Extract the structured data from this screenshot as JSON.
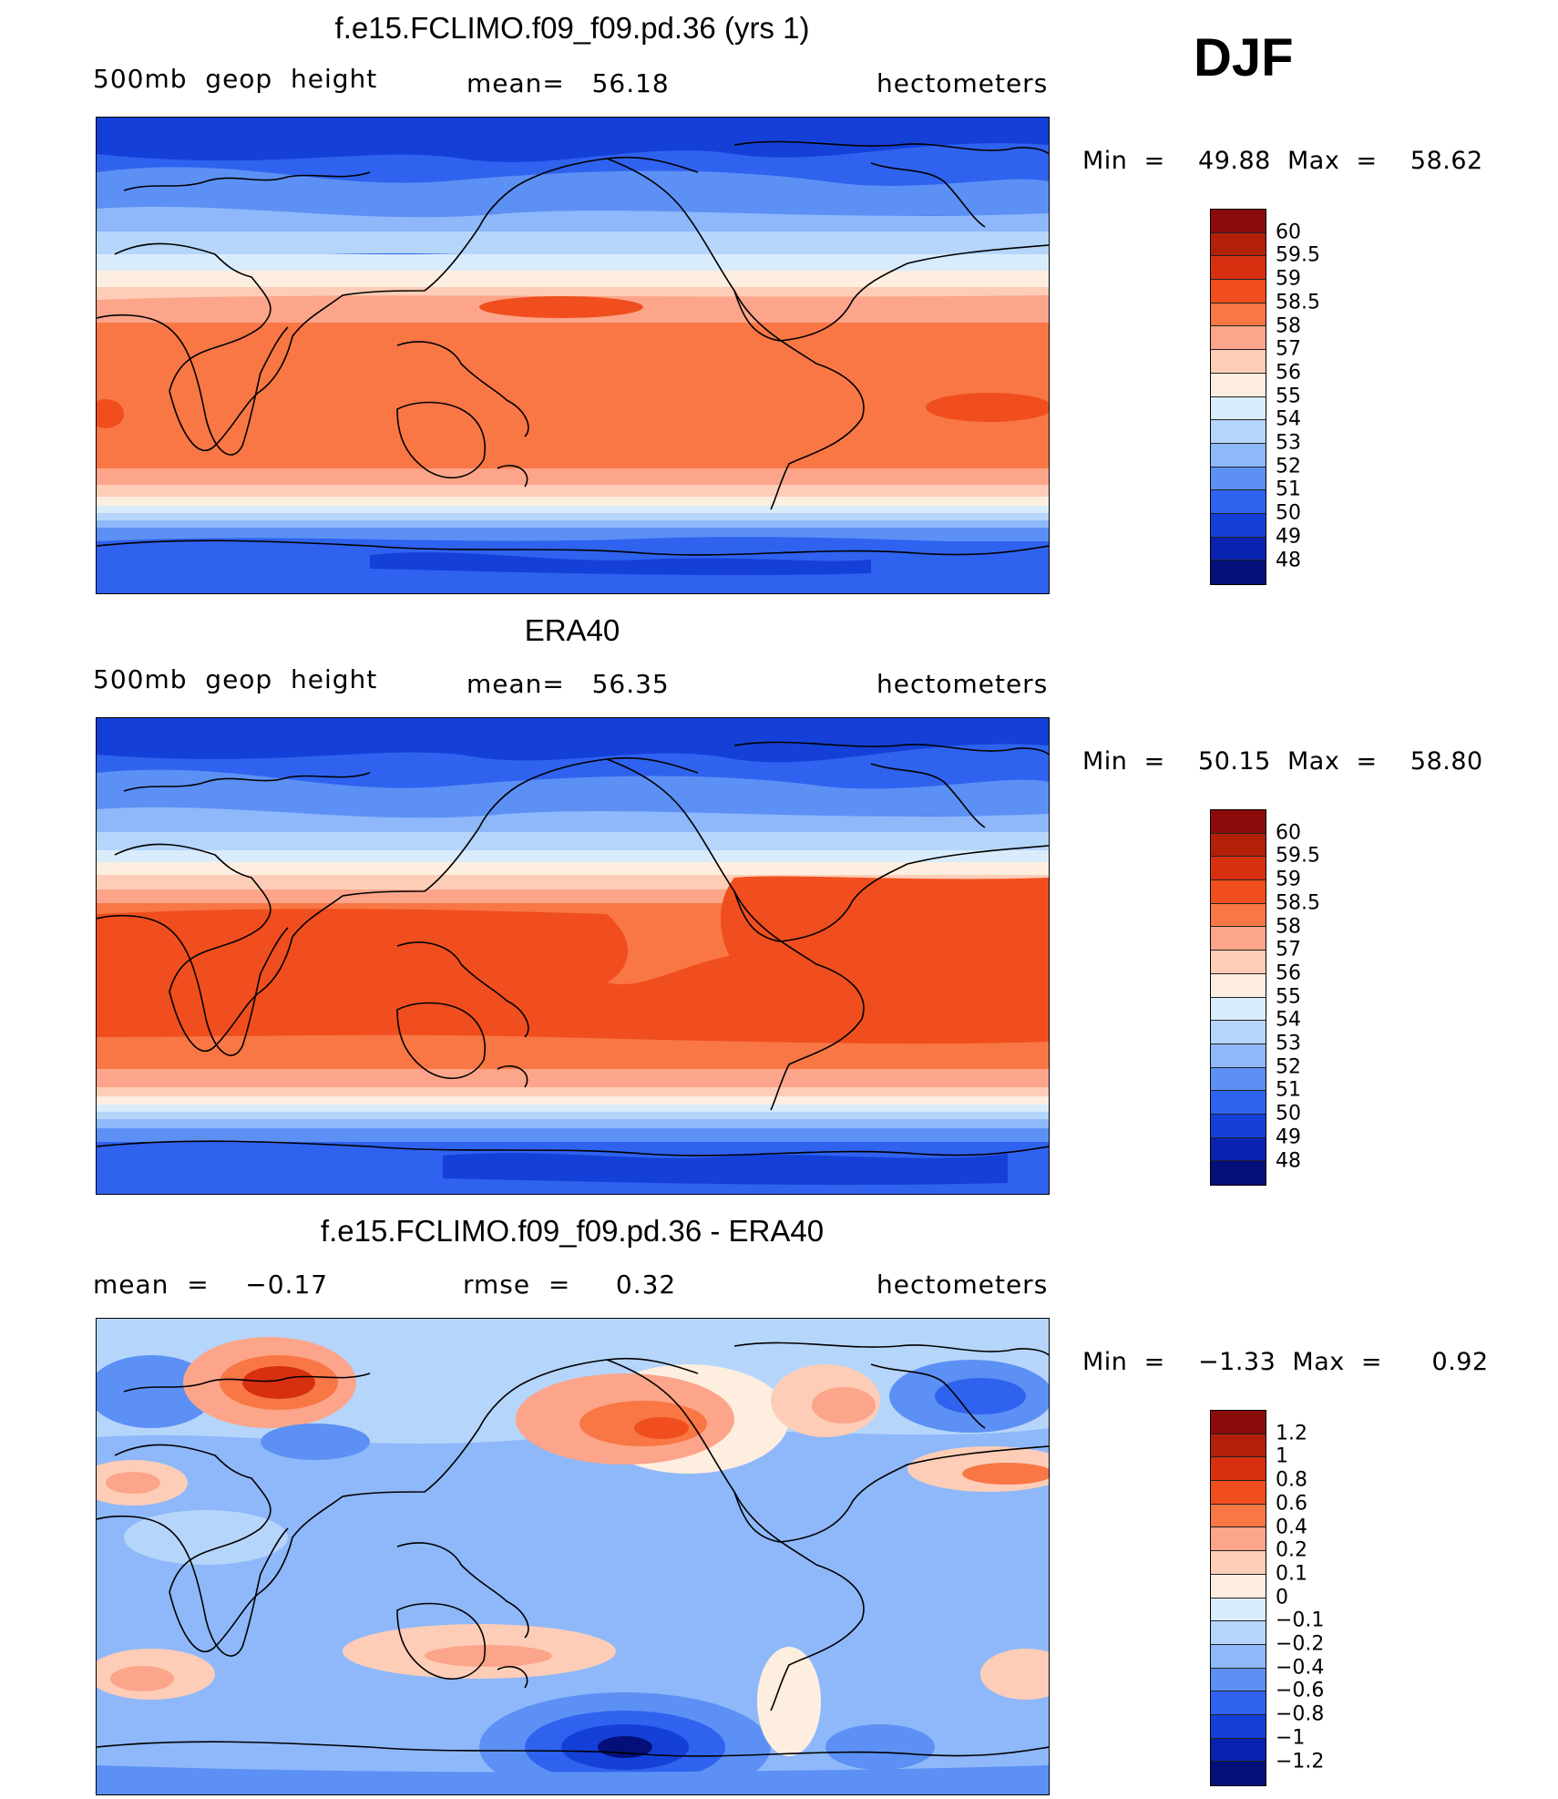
{
  "season": "DJF",
  "scale": {
    "levels": [
      "60",
      "59.5",
      "59",
      "58.5",
      "58",
      "57",
      "56",
      "55",
      "54",
      "53",
      "52",
      "51",
      "50",
      "49",
      "48"
    ],
    "colors": [
      "#8b0a0a",
      "#b3200a",
      "#d63010",
      "#f04e1e",
      "#f87745",
      "#fca58a",
      "#fdcdb7",
      "#fdeedf",
      "#d9ecfc",
      "#b6d5fb",
      "#8eb8fa",
      "#5c90f5",
      "#2f62ef",
      "#1540d8",
      "#0a22b0",
      "#040f7a"
    ]
  },
  "diff_scale": {
    "levels": [
      "1.2",
      "1",
      "0.8",
      "0.6",
      "0.4",
      "0.2",
      "0.1",
      "0",
      "−0.1",
      "−0.2",
      "−0.4",
      "−0.6",
      "−0.8",
      "−1",
      "−1.2"
    ],
    "colors": [
      "#8b0a0a",
      "#b3200a",
      "#d63010",
      "#f04e1e",
      "#f87745",
      "#fca58a",
      "#fdcdb7",
      "#fdeedf",
      "#d9ecfc",
      "#b6d5fb",
      "#8eb8fa",
      "#5c90f5",
      "#2f62ef",
      "#1540d8",
      "#0a22b0",
      "#040f7a"
    ]
  },
  "panels": [
    {
      "title": "f.e15.FCLIMO.f09_f09.pd.36 (yrs 1)",
      "left": "500mb  geop  height",
      "center": "mean=   56.18",
      "right": "hectometers",
      "minmax": "Min  =    49.88  Max  =    58.62"
    },
    {
      "title": "ERA40",
      "left": "500mb  geop  height",
      "center": "mean=   56.35",
      "right": "hectometers",
      "minmax": "Min  =    50.15  Max  =    58.80"
    },
    {
      "title": "f.e15.FCLIMO.f09_f09.pd.36 - ERA40",
      "left": "mean  =    −0.17",
      "center": "rmse  =     0.32",
      "right": "hectometers",
      "minmax": "Min  =    −1.33  Max  =      0.92"
    }
  ]
}
